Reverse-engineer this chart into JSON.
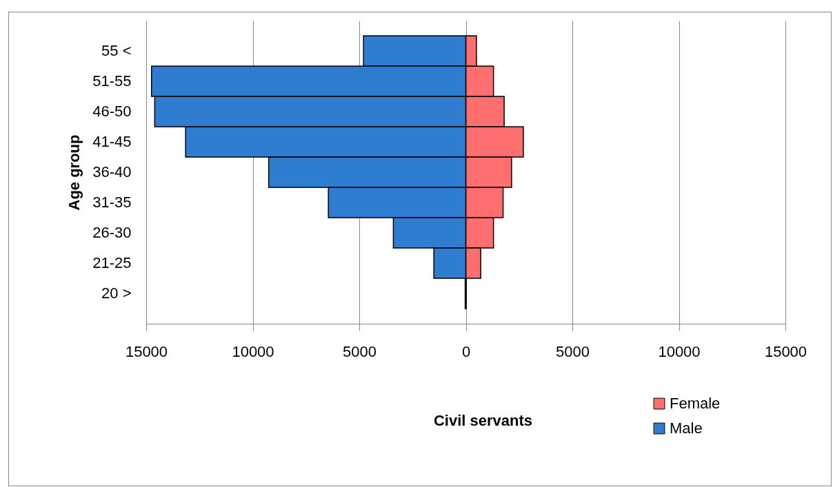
{
  "chart_data": {
    "type": "bar",
    "orientation": "horizontal",
    "stacked": true,
    "xlabel": "Civil servants",
    "ylabel": "Age group",
    "categories": [
      "55 <",
      "51-55",
      "46-50",
      "41-45",
      "36-40",
      "31-35",
      "26-30",
      "21-25",
      "20 >"
    ],
    "series": [
      {
        "name": "Female",
        "color": "#ff6f6f",
        "values": [
          500,
          1300,
          1800,
          2700,
          2150,
          1750,
          1300,
          700,
          20
        ]
      },
      {
        "name": "Male",
        "color": "#2e7dd1",
        "values": [
          -4800,
          -14750,
          -14600,
          -13150,
          -9250,
          -6450,
          -3400,
          -1500,
          -30
        ]
      }
    ],
    "xlim": [
      -15000,
      15000
    ],
    "xticks": [
      {
        "value": -15000,
        "label": "15000"
      },
      {
        "value": -10000,
        "label": "10000"
      },
      {
        "value": -5000,
        "label": "5000"
      },
      0,
      5000,
      10000,
      15000
    ],
    "grid": "x",
    "legend": "bottom right"
  }
}
